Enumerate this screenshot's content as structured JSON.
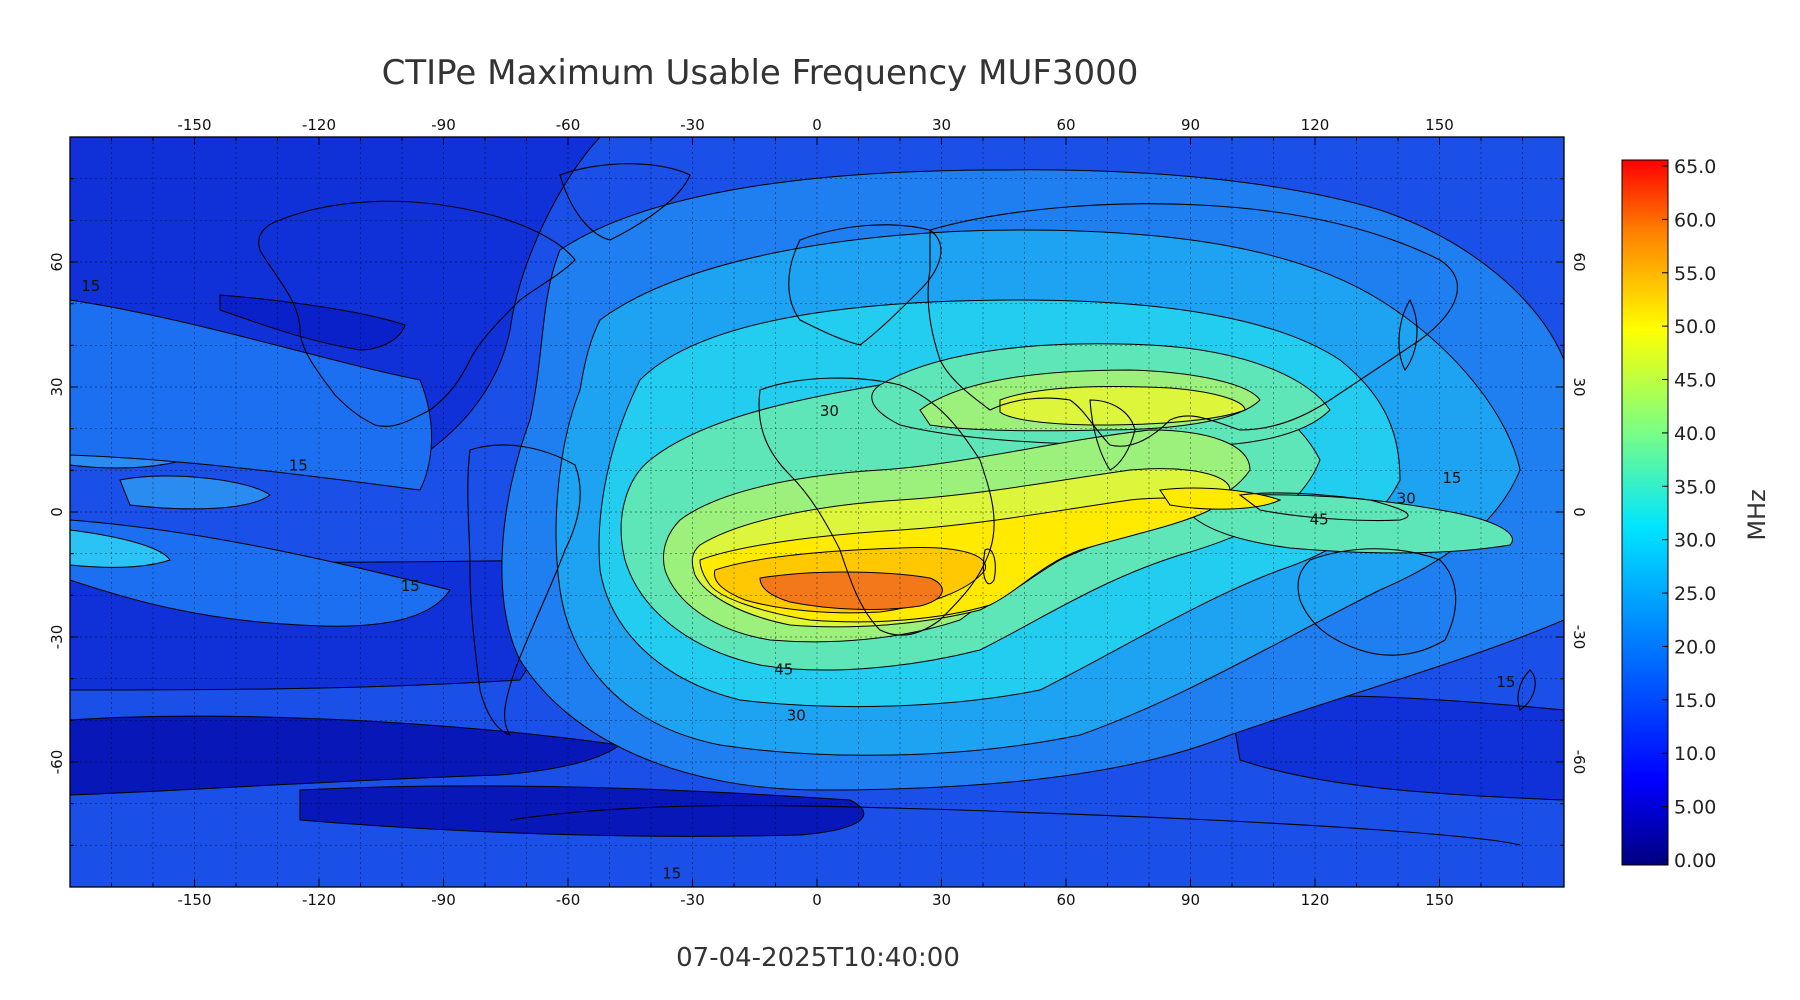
{
  "title": "CTIPe Maximum Usable Frequency MUF3000",
  "timestamp": "07-04-2025T10:40:00",
  "colorbar": {
    "unit": "MHz",
    "ticks": [
      "65.0",
      "60.0",
      "55.0",
      "50.0",
      "45.0",
      "40.0",
      "35.0",
      "30.0",
      "25.0",
      "20.0",
      "15.0",
      "10.0",
      "5.00",
      "0.00"
    ],
    "stops": [
      "#00007f",
      "#0000ff",
      "#007fff",
      "#00e5ff",
      "#7fff7f",
      "#ffff00",
      "#ff7f00",
      "#ff0000"
    ]
  },
  "axes": {
    "lon_labels": [
      "-150",
      "-120",
      "-90",
      "-60",
      "-30",
      "0",
      "30",
      "60",
      "90",
      "120",
      "150"
    ],
    "lat_labels": [
      "60",
      "30",
      "0",
      "-30",
      "-60"
    ]
  },
  "contour_labels": [
    {
      "text": "15"
    },
    {
      "text": "15"
    },
    {
      "text": "15"
    },
    {
      "text": "15"
    },
    {
      "text": "15"
    },
    {
      "text": "30"
    },
    {
      "text": "30"
    },
    {
      "text": "30"
    },
    {
      "text": "45"
    },
    {
      "text": "45"
    },
    {
      "text": "15"
    }
  ],
  "chart_data": {
    "type": "heatmap",
    "title": "CTIPe Maximum Usable Frequency MUF3000",
    "xlabel": "",
    "ylabel": "",
    "xlim": [
      -180,
      180
    ],
    "ylim": [
      -90,
      90
    ],
    "x_ticks": [
      -150,
      -120,
      -90,
      -60,
      -30,
      0,
      30,
      60,
      90,
      120,
      150
    ],
    "y_ticks": [
      60,
      30,
      0,
      -30,
      -60
    ],
    "colorbar_range": [
      0.0,
      65.0
    ],
    "colorbar_label": "MHz",
    "contour_levels": [
      15,
      30,
      45
    ],
    "peak_regions": [
      {
        "lon": 5,
        "lat": -22,
        "value": 55
      },
      {
        "lon": 75,
        "lat": 25,
        "value": 40
      },
      {
        "lon": 90,
        "lat": -8,
        "value": 45
      }
    ],
    "timestamp": "07-04-2025T10:40:00"
  }
}
